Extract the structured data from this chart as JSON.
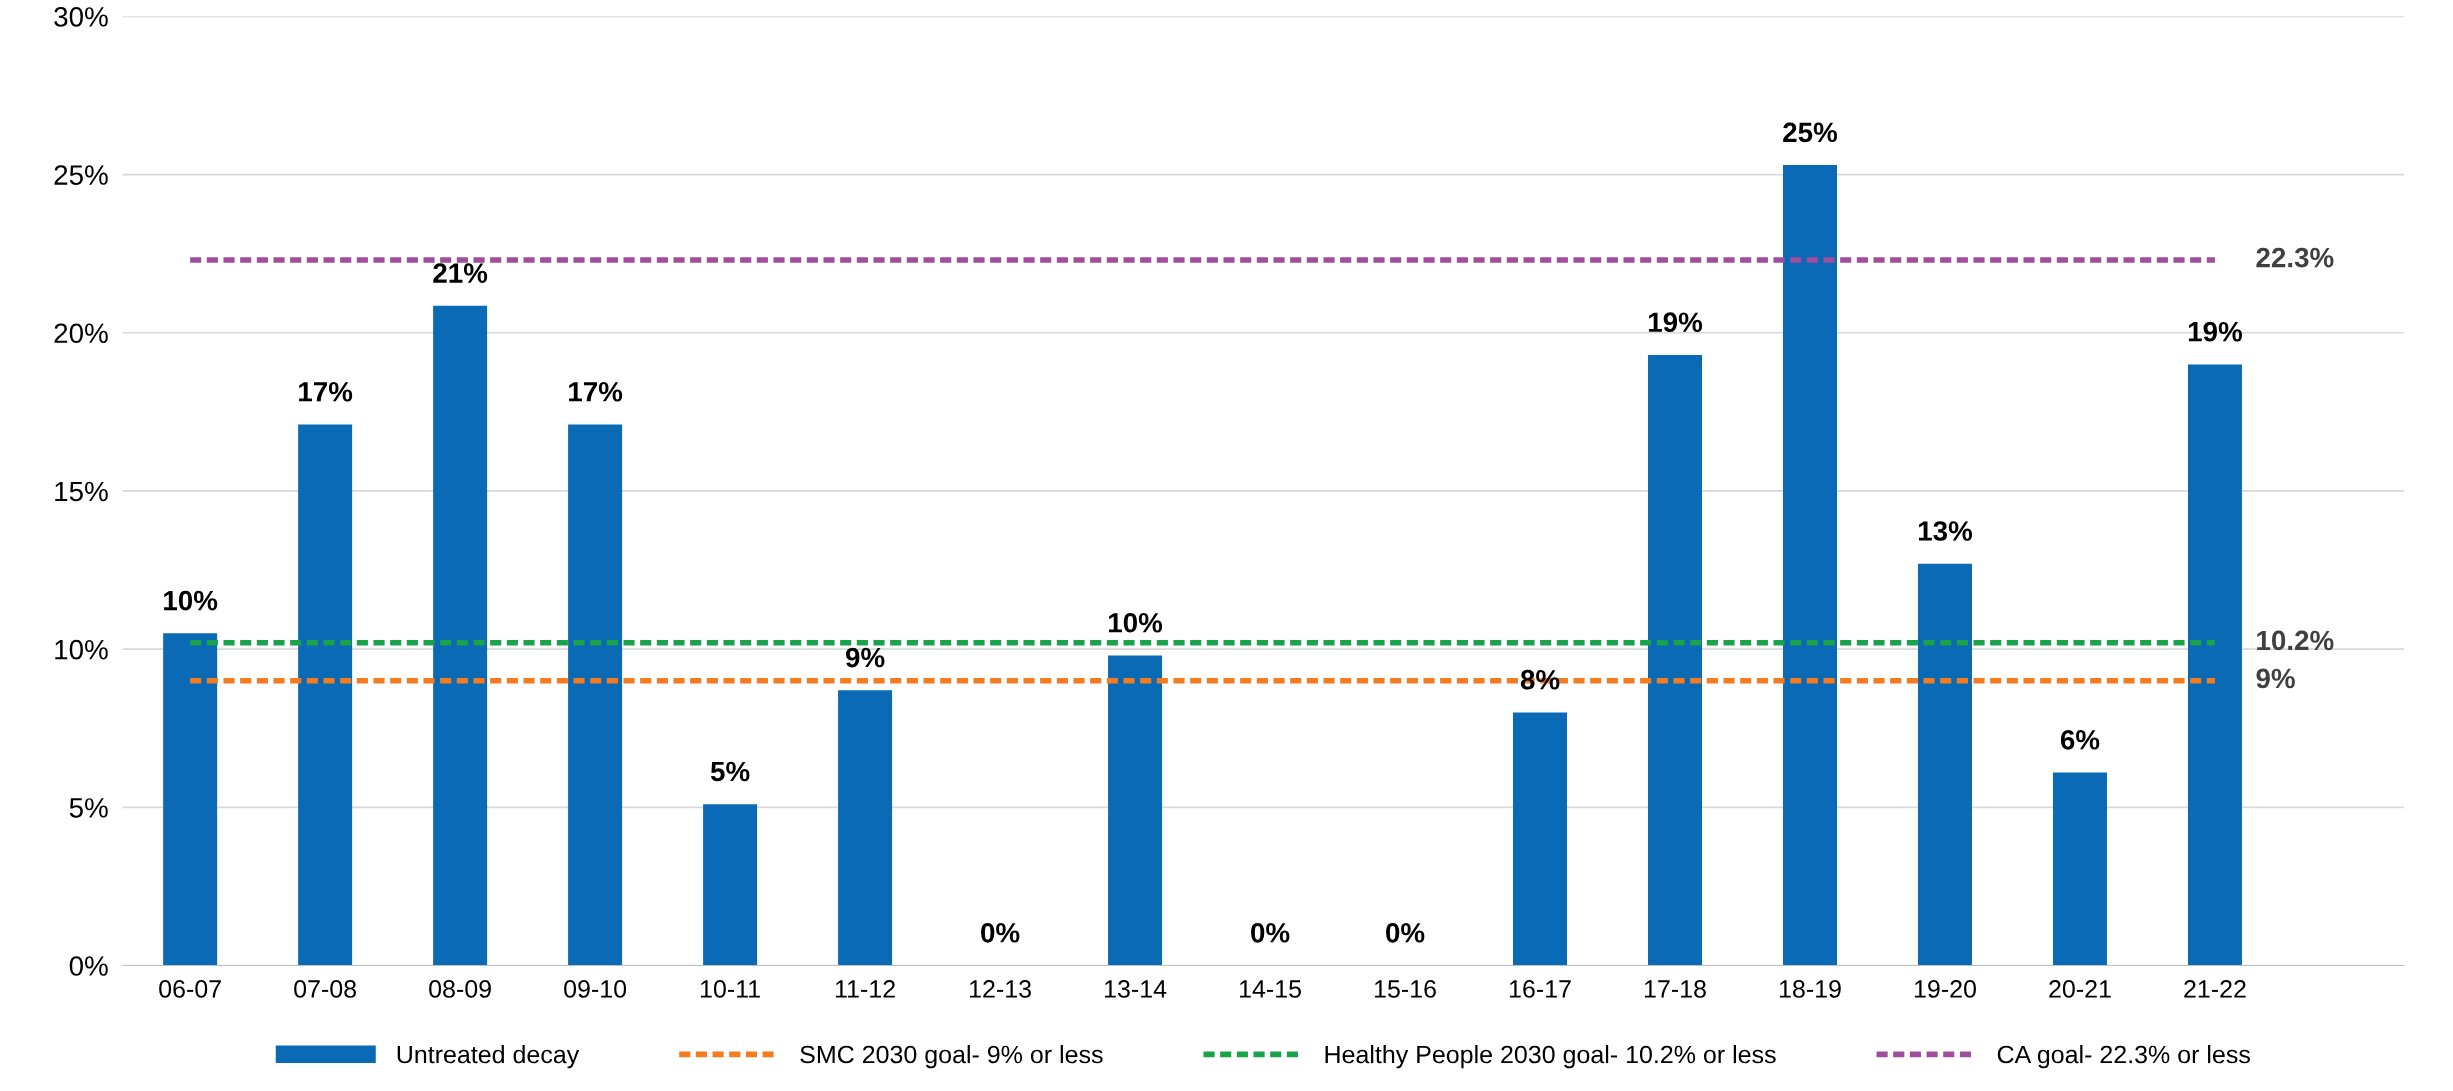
{
  "chart_data": {
    "type": "bar",
    "categories": [
      "06-07",
      "07-08",
      "08-09",
      "09-10",
      "10-11",
      "11-12",
      "12-13",
      "13-14",
      "14-15",
      "15-16",
      "16-17",
      "17-18",
      "18-19",
      "19-20",
      "20-21",
      "21-22"
    ],
    "ylim": [
      0,
      30
    ],
    "yticks": [
      {
        "value": 0,
        "label": "0%"
      },
      {
        "value": 5,
        "label": "5%"
      },
      {
        "value": 10,
        "label": "10%"
      },
      {
        "value": 15,
        "label": "15%"
      },
      {
        "value": 20,
        "label": "20%"
      },
      {
        "value": 25,
        "label": "25%"
      },
      {
        "value": 30,
        "label": "30%"
      }
    ],
    "grid": "y",
    "legend": "bottom",
    "series": [
      {
        "name": "Untreated decay",
        "color": "#0a6ab6",
        "values": [
          10.5,
          17.1,
          20.85,
          17.1,
          5.1,
          8.7,
          0,
          9.8,
          0,
          0,
          8.0,
          19.3,
          25.3,
          12.7,
          6.1,
          19.0
        ],
        "value_labels": [
          "10%",
          "17%",
          "21%",
          "17%",
          "5%",
          "9%",
          "0%",
          "10%",
          "0%",
          "0%",
          "8%",
          "19%",
          "25%",
          "13%",
          "6%",
          "19%"
        ]
      },
      {
        "name": "SMC 2030 goal- 9% or less",
        "type": "line",
        "line_style": "dashed",
        "color": "#f47b20",
        "values": [
          9,
          9,
          9,
          9,
          9,
          9,
          9,
          9,
          9,
          9,
          9,
          9,
          9,
          9,
          9,
          9
        ],
        "value_labels": [
          null,
          null,
          null,
          null,
          null,
          null,
          null,
          null,
          null,
          null,
          null,
          null,
          null,
          null,
          null,
          "9%"
        ]
      },
      {
        "name": "Healthy People 2030 goal- 10.2% or less",
        "type": "line",
        "line_style": "dashed",
        "color": "#1aa34a",
        "values": [
          10.2,
          10.2,
          10.2,
          10.2,
          10.2,
          10.2,
          10.2,
          10.2,
          10.2,
          10.2,
          10.2,
          10.2,
          10.2,
          10.2,
          10.2,
          10.2
        ],
        "value_labels": [
          null,
          null,
          null,
          null,
          null,
          null,
          null,
          null,
          null,
          null,
          null,
          null,
          null,
          null,
          null,
          "10.2%"
        ]
      },
      {
        "name": "CA goal- 22.3% or less",
        "type": "line",
        "line_style": "dashed",
        "color": "#a14d9e",
        "values": [
          22.3,
          22.3,
          22.3,
          22.3,
          22.3,
          22.3,
          22.3,
          22.3,
          22.3,
          22.3,
          22.3,
          22.3,
          22.3,
          22.3,
          22.3,
          22.3
        ],
        "value_labels": [
          null,
          null,
          null,
          null,
          null,
          null,
          null,
          null,
          null,
          null,
          null,
          null,
          null,
          null,
          null,
          "22.3%"
        ]
      }
    ]
  }
}
